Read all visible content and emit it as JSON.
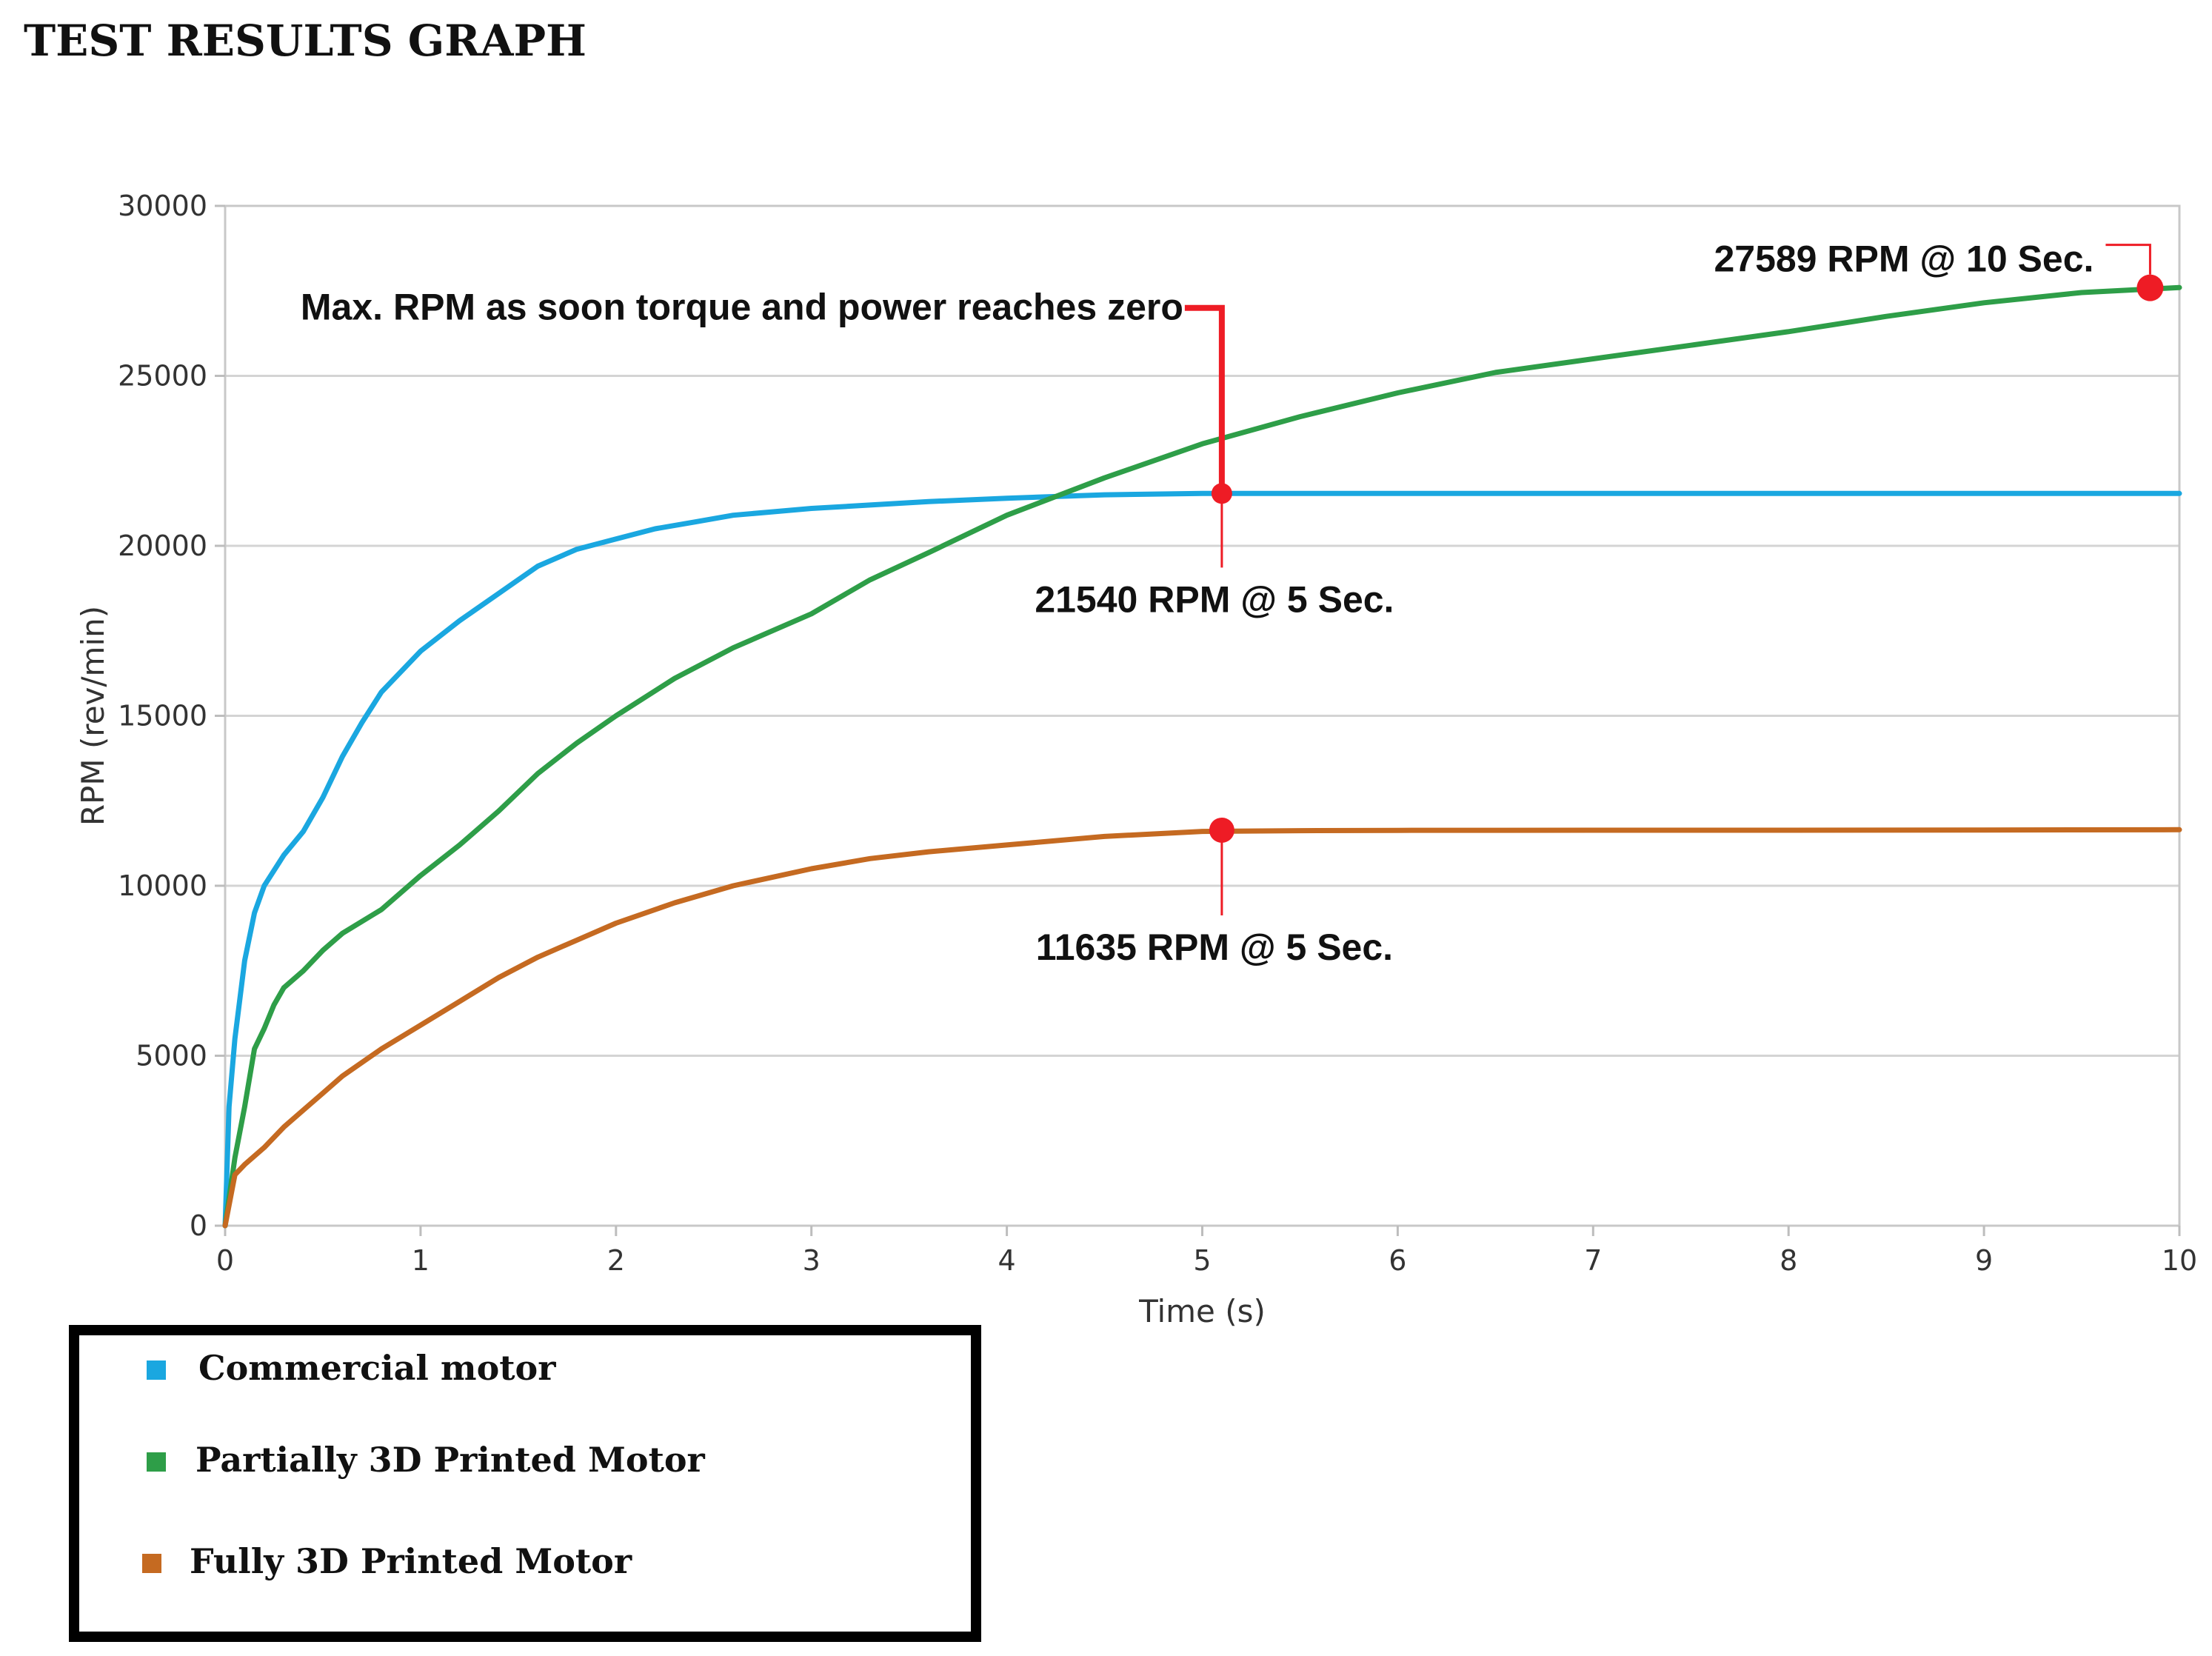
{
  "chart_data": {
    "type": "line",
    "title": "TEST RESULTS GRAPH",
    "xlabel": "Time (s)",
    "ylabel": "RPM (rev/min)",
    "xlim": [
      0,
      10
    ],
    "ylim": [
      0,
      30000
    ],
    "x_ticks": [
      "0",
      "1",
      "2",
      "3",
      "4",
      "5",
      "6",
      "7",
      "8",
      "9",
      "10"
    ],
    "y_ticks": [
      "0",
      "5000",
      "10000",
      "15000",
      "20000",
      "25000",
      "30000"
    ],
    "grid": "horizontal",
    "legend_position": "bottom-left",
    "series": [
      {
        "name": "Commercial motor",
        "color": "#1aa7e0",
        "x": [
          0,
          0.02,
          0.05,
          0.1,
          0.15,
          0.2,
          0.3,
          0.4,
          0.5,
          0.6,
          0.7,
          0.8,
          1.0,
          1.2,
          1.4,
          1.5,
          1.6,
          1.8,
          2.0,
          2.2,
          2.4,
          2.6,
          2.8,
          3.0,
          3.3,
          3.6,
          4.0,
          4.5,
          5.0,
          5.5,
          6.0,
          7.0,
          8.0,
          9.0,
          10.0
        ],
        "y": [
          0,
          3500,
          5500,
          7800,
          9200,
          10000,
          10900,
          11600,
          12600,
          13800,
          14800,
          15700,
          16900,
          17800,
          18600,
          19000,
          19400,
          19900,
          20200,
          20500,
          20700,
          20900,
          21000,
          21100,
          21200,
          21300,
          21400,
          21500,
          21540,
          21540,
          21540,
          21540,
          21540,
          21540,
          21540
        ]
      },
      {
        "name": "Partially 3D Printed Motor",
        "color": "#2e9e48",
        "x": [
          0,
          0.05,
          0.1,
          0.15,
          0.2,
          0.25,
          0.3,
          0.4,
          0.5,
          0.6,
          0.8,
          1.0,
          1.2,
          1.4,
          1.6,
          1.8,
          2.0,
          2.3,
          2.6,
          3.0,
          3.3,
          3.6,
          4.0,
          4.5,
          5.0,
          5.5,
          6.0,
          6.5,
          7.0,
          7.5,
          8.0,
          8.5,
          9.0,
          9.5,
          10.0
        ],
        "y": [
          0,
          2000,
          3500,
          5200,
          5800,
          6500,
          7000,
          7500,
          8100,
          8600,
          9300,
          10300,
          11200,
          12200,
          13300,
          14200,
          15000,
          16100,
          17000,
          18000,
          19000,
          19800,
          20900,
          22000,
          23000,
          23800,
          24500,
          25100,
          25500,
          25900,
          26300,
          26750,
          27150,
          27450,
          27600
        ]
      },
      {
        "name": "Fully 3D Printed Motor",
        "color": "#c56a21",
        "x": [
          0,
          0.05,
          0.1,
          0.2,
          0.3,
          0.4,
          0.5,
          0.6,
          0.8,
          1.0,
          1.2,
          1.4,
          1.6,
          1.8,
          2.0,
          2.3,
          2.6,
          3.0,
          3.3,
          3.6,
          4.0,
          4.5,
          5.0,
          5.5,
          6.0,
          7.0,
          8.0,
          9.0,
          10.0
        ],
        "y": [
          0,
          1500,
          1800,
          2300,
          2900,
          3400,
          3900,
          4400,
          5200,
          5900,
          6600,
          7300,
          7900,
          8400,
          8900,
          9500,
          10000,
          10500,
          10800,
          11000,
          11200,
          11450,
          11600,
          11620,
          11630,
          11635,
          11635,
          11640,
          11650
        ]
      }
    ],
    "annotations": [
      {
        "text": "Max. RPM as soon torque and power reaches zero",
        "x": 5.1,
        "y_from": 21540,
        "y_to": 27000
      },
      {
        "text": "27589 RPM @ 10 Sec.",
        "x": 9.85,
        "y": 27589
      },
      {
        "text": "21540 RPM @ 5 Sec.",
        "x": 5.1,
        "y": 21540
      },
      {
        "text": "11635 RPM @ 5 Sec.",
        "x": 5.1,
        "y": 11635
      }
    ]
  }
}
